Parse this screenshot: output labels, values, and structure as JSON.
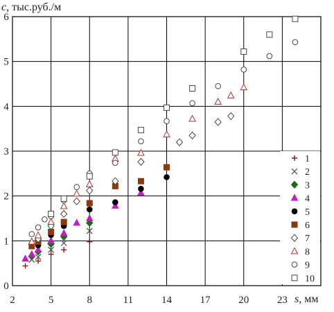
{
  "chart_data": {
    "type": "scatter",
    "title": "",
    "ylabel": {
      "symbol": "c",
      "unit": ", тыс.руб./м"
    },
    "xlabel": {
      "symbol": "s",
      "unit": ", мм"
    },
    "xlim": [
      2,
      26
    ],
    "ylim": [
      0,
      6
    ],
    "xticks": [
      2,
      5,
      8,
      11,
      14,
      17,
      20,
      23
    ],
    "yticks": [
      0,
      1,
      2,
      3,
      4,
      5,
      6
    ],
    "grid": true,
    "legend_position": "right",
    "series": [
      {
        "name": "1",
        "marker": "plus",
        "color": "#8b1a1a",
        "x": [
          3,
          4,
          5,
          6,
          8
        ],
        "y": [
          0.44,
          0.55,
          0.7,
          0.8,
          0.98
        ]
      },
      {
        "name": "2",
        "marker": "x",
        "color": "#555555",
        "x": [
          3.5,
          4,
          5,
          6,
          8
        ],
        "y": [
          0.58,
          0.64,
          0.8,
          0.95,
          1.22
        ]
      },
      {
        "name": "3",
        "marker": "diamond-filled",
        "color": "#1a6b1a",
        "x": [
          3.5,
          4,
          5,
          6,
          8
        ],
        "y": [
          0.66,
          0.76,
          0.93,
          1.09,
          1.4
        ]
      },
      {
        "name": "4",
        "marker": "triangle-filled",
        "color": "#c020c0",
        "x": [
          3,
          3.5,
          4,
          5,
          6,
          7,
          8,
          10,
          12
        ],
        "y": [
          0.6,
          0.7,
          0.8,
          1.0,
          1.17,
          1.4,
          1.5,
          1.78,
          2.07
        ]
      },
      {
        "name": "5",
        "marker": "circle-filled",
        "color": "#000000",
        "x": [
          4,
          5,
          6,
          8,
          10,
          12,
          14
        ],
        "y": [
          0.9,
          1.13,
          1.33,
          1.7,
          1.86,
          2.16,
          2.42
        ]
      },
      {
        "name": "6",
        "marker": "square-filled",
        "color": "#8b3a10",
        "x": [
          3.5,
          4,
          5,
          6,
          8,
          10,
          12,
          14
        ],
        "y": [
          0.88,
          0.98,
          1.2,
          1.42,
          1.84,
          2.22,
          2.33,
          2.64
        ]
      },
      {
        "name": "7",
        "marker": "diamond-open",
        "color": "#444444",
        "x": [
          4,
          5,
          6,
          7,
          8,
          10,
          12,
          15,
          16,
          18,
          19
        ],
        "y": [
          1.04,
          1.33,
          1.6,
          1.88,
          2.12,
          2.33,
          2.76,
          3.2,
          3.35,
          3.65,
          3.78
        ]
      },
      {
        "name": "8",
        "marker": "triangle-open",
        "color": "#b03030",
        "x": [
          3.5,
          4,
          5,
          6,
          7,
          8,
          10,
          12,
          14,
          16,
          18,
          19,
          20
        ],
        "y": [
          0.98,
          1.12,
          1.42,
          1.77,
          2.05,
          2.26,
          2.83,
          2.96,
          3.37,
          3.72,
          4.1,
          4.24,
          4.42
        ]
      },
      {
        "name": "9",
        "marker": "circle-open",
        "color": "#444444",
        "x": [
          3.5,
          4,
          4.5,
          5,
          6,
          7,
          8,
          10,
          12,
          14,
          16,
          18,
          20,
          22,
          24
        ],
        "y": [
          1.15,
          1.3,
          1.48,
          1.55,
          1.9,
          2.2,
          2.5,
          2.74,
          3.22,
          3.67,
          4.07,
          4.45,
          4.82,
          5.12,
          5.43
        ]
      },
      {
        "name": "10",
        "marker": "square-open",
        "color": "#444444",
        "x": [
          5,
          6,
          8,
          10,
          12,
          14,
          16,
          20,
          22,
          24
        ],
        "y": [
          1.6,
          1.94,
          2.44,
          2.97,
          3.47,
          3.97,
          4.4,
          5.22,
          5.6,
          5.95
        ]
      }
    ]
  }
}
